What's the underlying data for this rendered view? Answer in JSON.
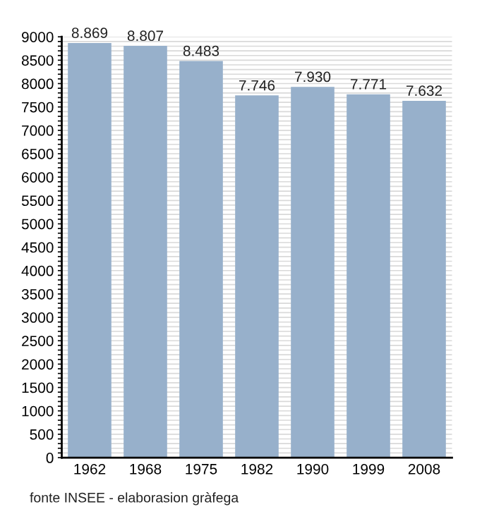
{
  "chart_data": {
    "type": "bar",
    "categories": [
      "1962",
      "1968",
      "1975",
      "1982",
      "1990",
      "1999",
      "2008"
    ],
    "values": [
      8869,
      8807,
      8483,
      7746,
      7930,
      7771,
      7632
    ],
    "value_labels": [
      "8.869",
      "8.807",
      "8.483",
      "7.746",
      "7.930",
      "7.771",
      "7.632"
    ],
    "color": "#97b0cb",
    "ylim": [
      0,
      9000
    ],
    "yticks": [
      0,
      {
        "value": 100,
        "label": null
      },
      {
        "value": 200,
        "label": null
      },
      {
        "value": 300,
        "label": null
      },
      {
        "value": 400,
        "label": null
      },
      500,
      {
        "value": 600,
        "label": null
      },
      {
        "value": 700,
        "label": null
      },
      {
        "value": 800,
        "label": null
      },
      {
        "value": 900,
        "label": null
      },
      1000,
      {
        "value": 1100,
        "label": null
      },
      {
        "value": 1200,
        "label": null
      },
      {
        "value": 1300,
        "label": null
      },
      {
        "value": 1400,
        "label": null
      },
      1500,
      {
        "value": 1600,
        "label": null
      },
      {
        "value": 1700,
        "label": null
      },
      {
        "value": 1800,
        "label": null
      },
      {
        "value": 1900,
        "label": null
      },
      2000,
      {
        "value": 2100,
        "label": null
      },
      {
        "value": 2200,
        "label": null
      },
      {
        "value": 2300,
        "label": null
      },
      {
        "value": 2400,
        "label": null
      },
      2500,
      {
        "value": 2600,
        "label": null
      },
      {
        "value": 2700,
        "label": null
      },
      {
        "value": 2800,
        "label": null
      },
      {
        "value": 2900,
        "label": null
      },
      3000,
      {
        "value": 3100,
        "label": null
      },
      {
        "value": 3200,
        "label": null
      },
      {
        "value": 3300,
        "label": null
      },
      {
        "value": 3400,
        "label": null
      },
      3500,
      {
        "value": 3600,
        "label": null
      },
      {
        "value": 3700,
        "label": null
      },
      {
        "value": 3800,
        "label": null
      },
      {
        "value": 3900,
        "label": null
      },
      4000,
      {
        "value": 4100,
        "label": null
      },
      {
        "value": 4200,
        "label": null
      },
      {
        "value": 4300,
        "label": null
      },
      {
        "value": 4400,
        "label": null
      },
      4500,
      {
        "value": 4600,
        "label": null
      },
      {
        "value": 4700,
        "label": null
      },
      {
        "value": 4800,
        "label": null
      },
      {
        "value": 4900,
        "label": null
      },
      5000,
      {
        "value": 5100,
        "label": null
      },
      {
        "value": 5200,
        "label": null
      },
      {
        "value": 5300,
        "label": null
      },
      {
        "value": 5400,
        "label": null
      },
      5500,
      {
        "value": 5600,
        "label": null
      },
      {
        "value": 5700,
        "label": null
      },
      {
        "value": 5800,
        "label": null
      },
      {
        "value": 5900,
        "label": null
      },
      6000,
      {
        "value": 6100,
        "label": null
      },
      {
        "value": 6200,
        "label": null
      },
      {
        "value": 6300,
        "label": null
      },
      {
        "value": 6400,
        "label": null
      },
      6500,
      {
        "value": 6600,
        "label": null
      },
      {
        "value": 6700,
        "label": null
      },
      {
        "value": 6800,
        "label": null
      },
      {
        "value": 6900,
        "label": null
      },
      7000,
      {
        "value": 7100,
        "label": null
      },
      {
        "value": 7200,
        "label": null
      },
      {
        "value": 7300,
        "label": null
      },
      {
        "value": 7400,
        "label": null
      },
      7500,
      {
        "value": 7600,
        "label": null
      },
      {
        "value": 7700,
        "label": null
      },
      {
        "value": 7800,
        "label": null
      },
      {
        "value": 7900,
        "label": null
      },
      8000,
      {
        "value": 8100,
        "label": null
      },
      {
        "value": 8200,
        "label": null
      },
      {
        "value": 8300,
        "label": null
      },
      {
        "value": 8400,
        "label": null
      },
      8500,
      {
        "value": 8600,
        "label": null
      },
      {
        "value": 8700,
        "label": null
      },
      {
        "value": 8800,
        "label": null
      },
      {
        "value": 8900,
        "label": null
      },
      9000
    ],
    "grid": "y",
    "annotations": [
      "fonte INSEE - elaborasion gràfega"
    ]
  }
}
